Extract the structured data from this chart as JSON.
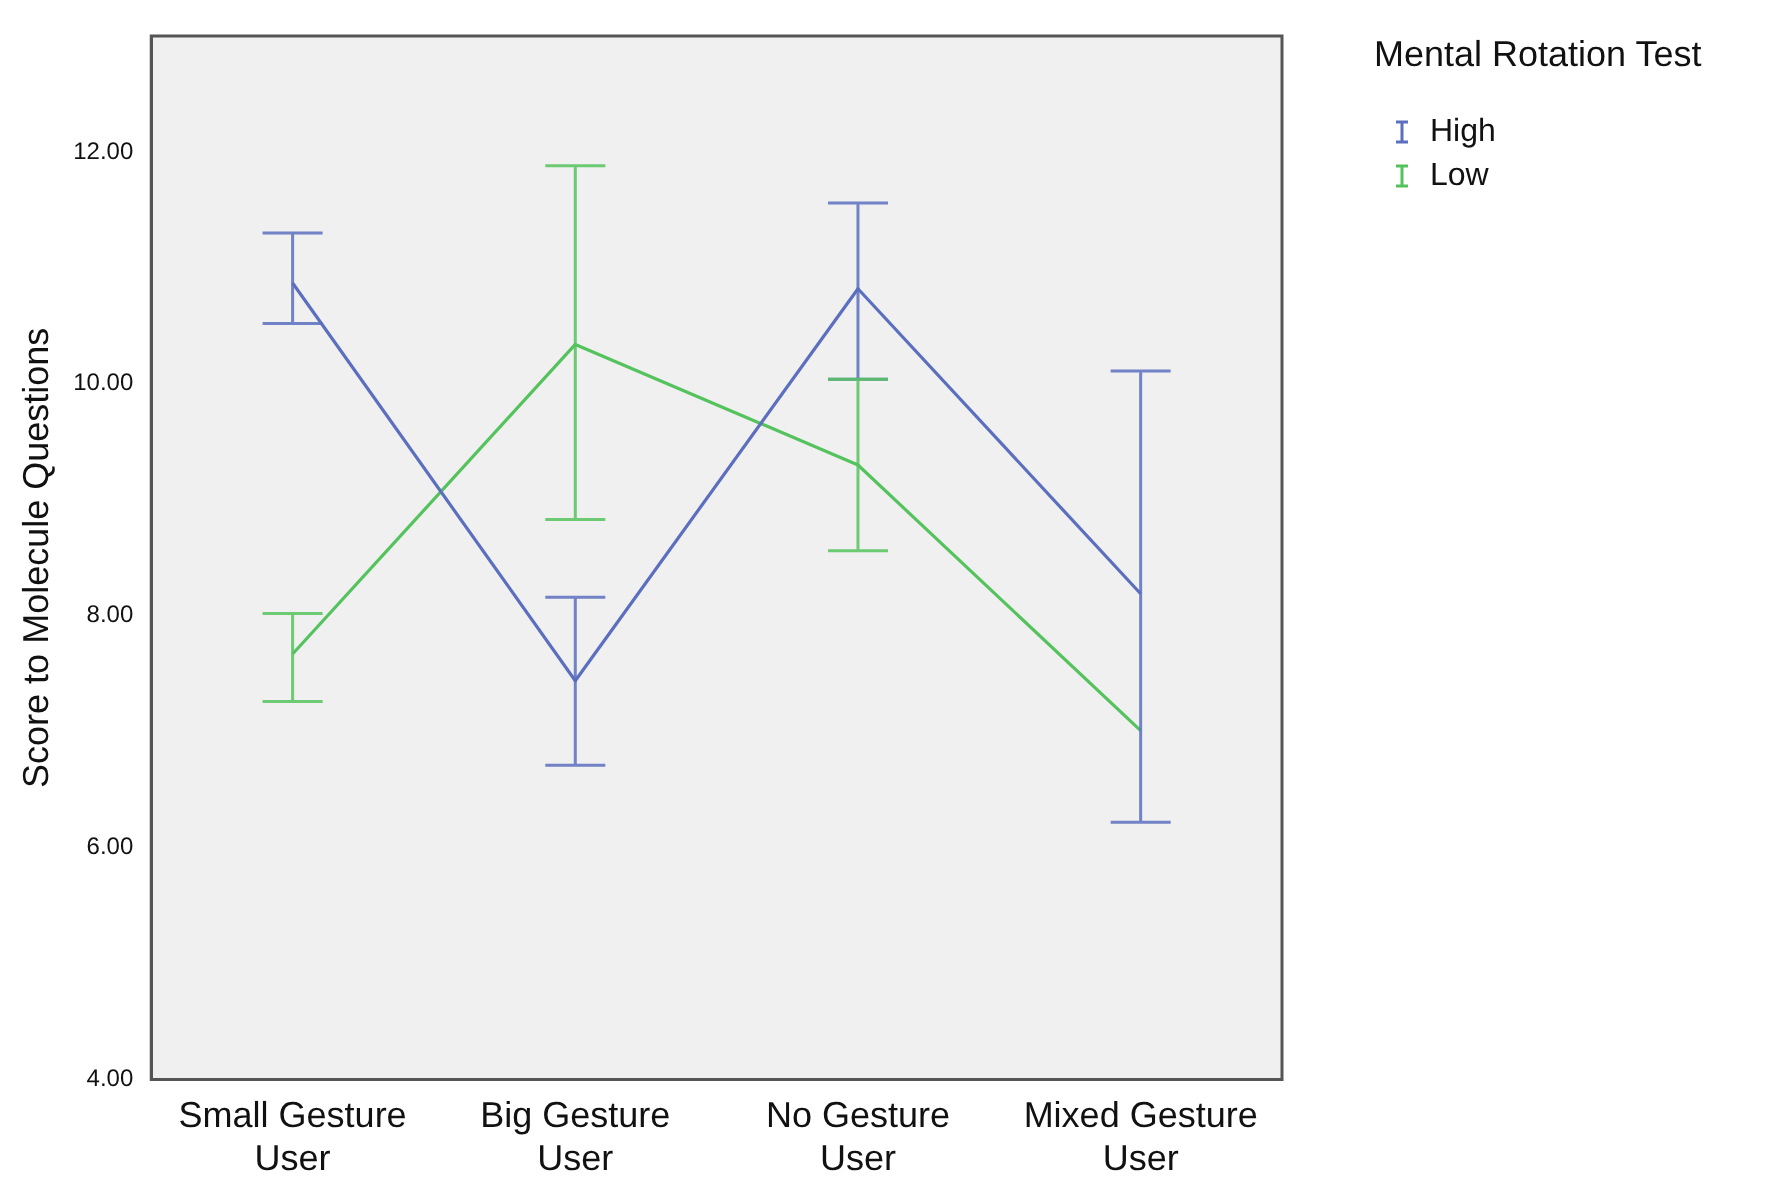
{
  "chart_data": {
    "type": "line",
    "ylabel": "Score to Molecule Questions",
    "legend_title": "Mental Rotation Test",
    "legend": "top right",
    "categories": [
      "Small Gesture User",
      "Big Gesture User",
      "No Gesture User",
      "Mixed Gesture User"
    ],
    "series": [
      {
        "name": "High",
        "color": "#5b6fbe",
        "values": [
          10.87,
          7.44,
          10.82,
          8.19
        ],
        "errors": [
          [
            10.52,
            11.3
          ],
          [
            6.71,
            8.16
          ],
          [
            10.04,
            11.56
          ],
          [
            6.22,
            10.11
          ]
        ]
      },
      {
        "name": "Low",
        "color": "#55c35d",
        "values": [
          7.67,
          10.34,
          9.3,
          7.01
        ],
        "errors": [
          [
            7.26,
            8.02
          ],
          [
            8.83,
            11.88
          ],
          [
            8.56,
            10.04
          ],
          null
        ]
      }
    ],
    "ylim": [
      4,
      13
    ],
    "yticks": [
      {
        "value": 4,
        "label": "4.00"
      },
      {
        "value": 6,
        "label": "6.00"
      },
      {
        "value": 8,
        "label": "8.00"
      },
      {
        "value": 10,
        "label": "10.00"
      },
      {
        "value": 12,
        "label": "12.00"
      }
    ],
    "grid": false,
    "marker": "none",
    "line_style": "solid"
  }
}
